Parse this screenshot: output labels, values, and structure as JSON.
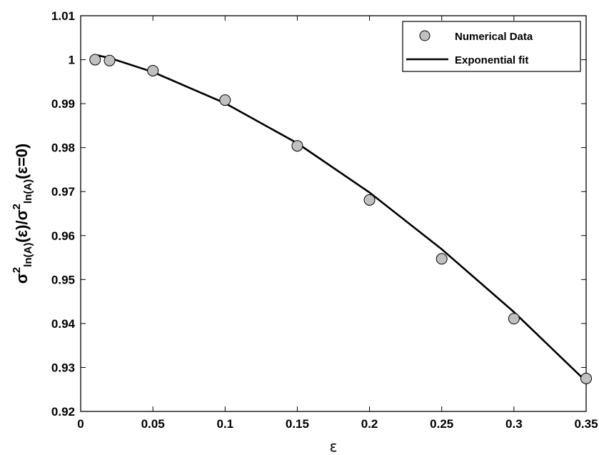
{
  "chart_data": {
    "type": "scatter",
    "xlabel": "ε",
    "ylabel": {
      "parts": [
        {
          "t": "σ"
        },
        {
          "t": "2",
          "sup": true
        },
        {
          "t": "ln(A)",
          "sub": true
        },
        {
          "t": "(ε)/σ"
        },
        {
          "t": "2",
          "sup": true
        },
        {
          "t": "ln(A)",
          "sub": true
        },
        {
          "t": "(ε=0)"
        }
      ]
    },
    "xlim": [
      0,
      0.35
    ],
    "ylim": [
      0.92,
      1.01
    ],
    "xticks": [
      "0",
      "0.05",
      "0.1",
      "0.15",
      "0.2",
      "0.25",
      "0.3",
      "0.35"
    ],
    "yticks": [
      "0.92",
      "0.93",
      "0.94",
      "0.95",
      "0.96",
      "0.97",
      "0.98",
      "0.99",
      "1",
      "1.01"
    ],
    "grid": false,
    "legend_position": "top-right",
    "series": [
      {
        "name": "Numerical Data",
        "kind": "markers",
        "marker_color": "#c0c0c0",
        "x": [
          0.01,
          0.02,
          0.05,
          0.1,
          0.15,
          0.2,
          0.25,
          0.3,
          0.35
        ],
        "y": [
          1.0,
          0.9998,
          0.9975,
          0.9908,
          0.9804,
          0.9681,
          0.9547,
          0.9411,
          0.9275
        ]
      },
      {
        "name": "Exponential fit",
        "kind": "line",
        "line_color": "#000000",
        "x": [
          0.01,
          0.02,
          0.05,
          0.1,
          0.15,
          0.2,
          0.25,
          0.3,
          0.35
        ],
        "y": [
          1.0011,
          1.0004,
          0.9972,
          0.9901,
          0.981,
          0.9698,
          0.9569,
          0.9426,
          0.9268
        ]
      }
    ]
  }
}
